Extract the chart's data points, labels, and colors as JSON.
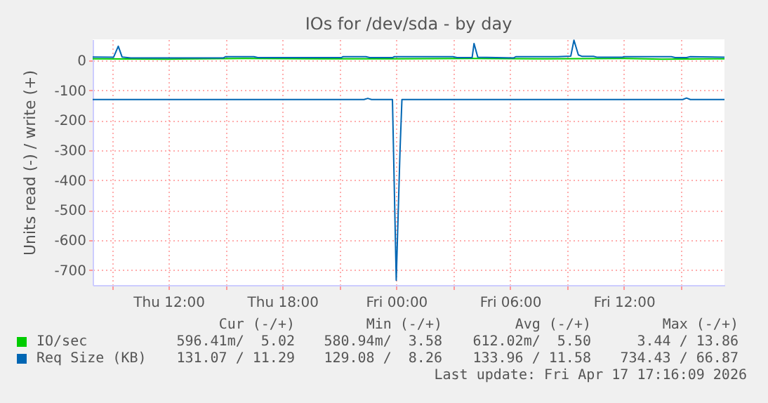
{
  "chart_data": {
    "type": "line",
    "title": "IOs for /dev/sda - by day",
    "ylabel": "Units read (-) / write (+)",
    "xlim": [
      "2026-04-16T08:00",
      "2026-04-17T17:18"
    ],
    "xticks": [
      {
        "value": "2026-04-16T09:00",
        "label": null
      },
      {
        "value": "2026-04-16T12:00",
        "label": "Thu 12:00"
      },
      {
        "value": "2026-04-16T15:00",
        "label": null
      },
      {
        "value": "2026-04-16T18:00",
        "label": "Thu 18:00"
      },
      {
        "value": "2026-04-16T21:00",
        "label": null
      },
      {
        "value": "2026-04-17T00:00",
        "label": "Fri 00:00"
      },
      {
        "value": "2026-04-17T03:00",
        "label": null
      },
      {
        "value": "2026-04-17T06:00",
        "label": "Fri 06:00"
      },
      {
        "value": "2026-04-17T09:00",
        "label": null
      },
      {
        "value": "2026-04-17T12:00",
        "label": "Fri 12:00"
      },
      {
        "value": "2026-04-17T15:00",
        "label": null
      }
    ],
    "ylim": [
      -750,
      70
    ],
    "yticks": [
      0,
      -100,
      -200,
      -300,
      -400,
      -500,
      -600,
      -700
    ],
    "grid": true,
    "legend": "bottom left",
    "line_style": "solid",
    "series": [
      {
        "name": "IO/sec",
        "color": "#00cc00",
        "x": [
          "2026-04-16T08:00",
          "2026-04-16T12:00",
          "2026-04-16T16:00",
          "2026-04-16T20:00",
          "2026-04-17T00:00",
          "2026-04-17T04:00",
          "2026-04-17T08:00",
          "2026-04-17T12:00",
          "2026-04-17T14:00",
          "2026-04-17T17:18"
        ],
        "values": [
          5,
          4,
          6,
          5,
          5,
          6,
          5,
          6,
          4,
          5
        ]
      },
      {
        "color": "#0066b3",
        "x": [
          "2026-04-16T08:00",
          "2026-04-16T22:18",
          "2026-04-16T22:30",
          "2026-04-16T22:42",
          "2026-04-16T23:48",
          "2026-04-17T00:00",
          "2026-04-17T00:12",
          "2026-04-17T00:18",
          "2026-04-17T15:06",
          "2026-04-17T15:18",
          "2026-04-17T15:30",
          "2026-04-17T17:18"
        ],
        "values": [
          -131,
          -131,
          -127,
          -131,
          -131,
          -734,
          -300,
          -131,
          -131,
          -126,
          -131,
          -131
        ]
      },
      {
        "name": "Req Size (KB)",
        "color": "#0066b3",
        "x": [
          "2026-04-16T08:00",
          "2026-04-16T09:06",
          "2026-04-16T09:21",
          "2026-04-16T09:33",
          "2026-04-16T10:00",
          "2026-04-16T14:54",
          "2026-04-16T15:00",
          "2026-04-16T16:30",
          "2026-04-16T16:42",
          "2026-04-16T21:06",
          "2026-04-16T21:12",
          "2026-04-16T22:24",
          "2026-04-16T22:36",
          "2026-04-16T23:48",
          "2026-04-16T23:54",
          "2026-04-17T03:00",
          "2026-04-17T03:12",
          "2026-04-17T04:00",
          "2026-04-17T04:06",
          "2026-04-17T04:18",
          "2026-04-17T06:12",
          "2026-04-17T06:18",
          "2026-04-17T08:30",
          "2026-04-17T09:12",
          "2026-04-17T09:22",
          "2026-04-17T09:36",
          "2026-04-17T09:48",
          "2026-04-17T10:24",
          "2026-04-17T10:36",
          "2026-04-17T11:54",
          "2026-04-17T12:00",
          "2026-04-17T14:30",
          "2026-04-17T14:42",
          "2026-04-17T15:18",
          "2026-04-17T15:30",
          "2026-04-17T17:18"
        ],
        "values": [
          11,
          10,
          47,
          11,
          8,
          8,
          12,
          12,
          9,
          9,
          12,
          12,
          9,
          9,
          12,
          12,
          9,
          9,
          56,
          10,
          8,
          12,
          12,
          14,
          67,
          18,
          13,
          13,
          10,
          10,
          12,
          12,
          9,
          9,
          12,
          10
        ]
      }
    ],
    "annotations": [
      "Cur (-/+)",
      "Min (-/+)",
      "Avg (-/+)",
      "Max (-/+)",
      "596.41m/  5.02",
      "580.94m/  3.58",
      "612.02m/  5.50",
      "3.44 / 13.86",
      "131.07 / 11.29",
      "129.08 /  8.26",
      "133.96 / 11.58",
      "734.43 / 66.87",
      "Last update: Fri Apr 17 17:16:09 2026"
    ]
  }
}
